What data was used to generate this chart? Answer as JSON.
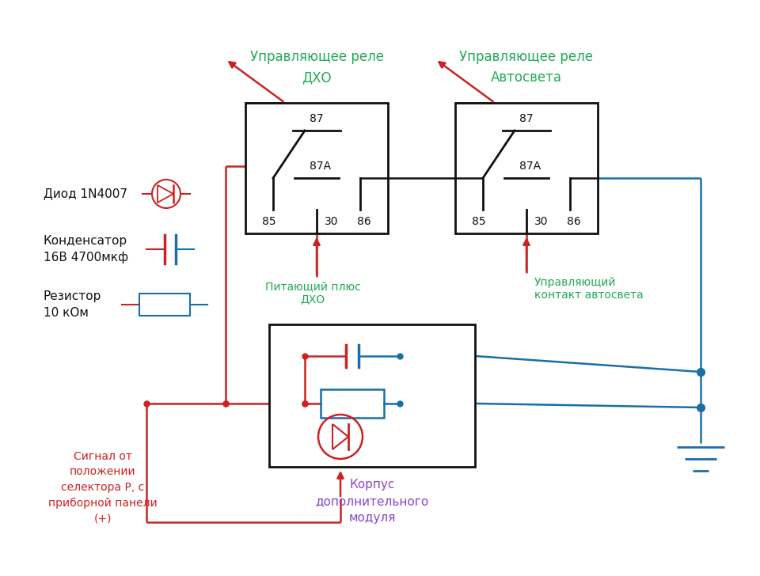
{
  "bg_color": "#ffffff",
  "red": "#cc2222",
  "blue": "#1a6fa8",
  "green": "#22aa55",
  "black": "#111111",
  "purple": "#8844cc",
  "title1": "Управляющее реле\nДХО",
  "title2": "Управляющее реле\nАвтосвета",
  "label_питающий": "Питающий плюс\nДХО",
  "label_управляющий": "Управляющий\nконтакт автосвета",
  "label_сигнал": "Сигнал от\nположении\nселектора Р, с\nприборной панели\n(+)",
  "label_корпус": "Корпус\nдополнительного\nмодуля",
  "label_диод": "Диод 1N4007",
  "label_конденсатор": "Конденсатор\n16В 4700мкф",
  "label_резистор": "Резистор\n10 кОм"
}
